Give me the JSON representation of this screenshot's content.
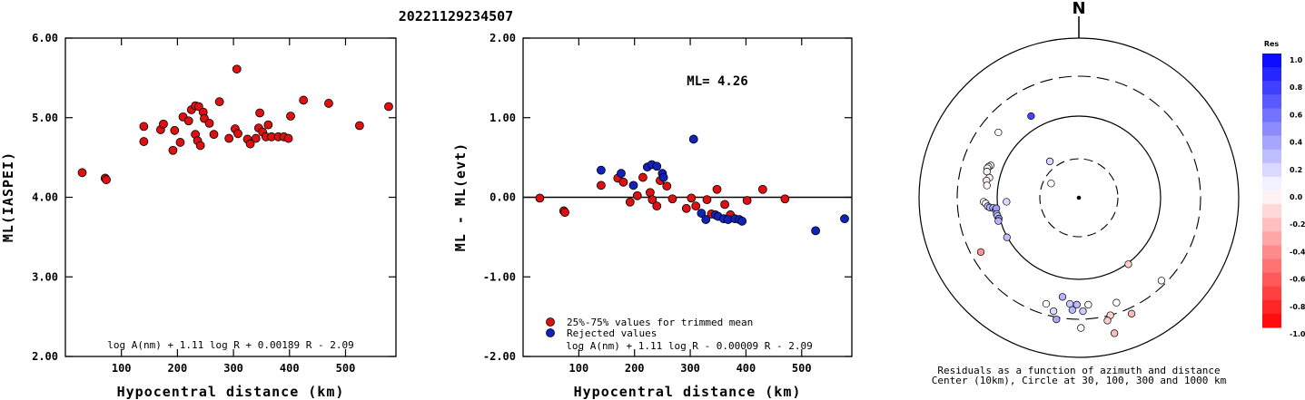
{
  "figure_title": "20221129234507",
  "chart_data": [
    {
      "type": "scatter",
      "panel": "left",
      "xlabel": "Hypocentral distance (km)",
      "ylabel": "ML(IASPEI)",
      "xlim": [
        0,
        590
      ],
      "ylim": [
        2.0,
        6.0
      ],
      "xticks": [
        "100",
        "200",
        "300",
        "400",
        "500"
      ],
      "yticks": [
        "2.00",
        "3.00",
        "4.00",
        "5.00",
        "6.00"
      ],
      "formula": "log A(nm) + 1.11 log R + 0.00189 R - 2.09",
      "color": "#dd1111",
      "points": [
        [
          30,
          4.31
        ],
        [
          71,
          4.24
        ],
        [
          73,
          4.22
        ],
        [
          140,
          4.89
        ],
        [
          140,
          4.7
        ],
        [
          170,
          4.85
        ],
        [
          175,
          4.92
        ],
        [
          192,
          4.59
        ],
        [
          195,
          4.84
        ],
        [
          205,
          4.69
        ],
        [
          210,
          5.01
        ],
        [
          220,
          4.96
        ],
        [
          225,
          5.1
        ],
        [
          232,
          5.15
        ],
        [
          232,
          4.79
        ],
        [
          238,
          5.14
        ],
        [
          236,
          4.71
        ],
        [
          241,
          4.65
        ],
        [
          246,
          5.07
        ],
        [
          248,
          4.99
        ],
        [
          257,
          4.93
        ],
        [
          265,
          4.79
        ],
        [
          275,
          5.2
        ],
        [
          292,
          4.74
        ],
        [
          303,
          4.86
        ],
        [
          306,
          5.61
        ],
        [
          308,
          4.8
        ],
        [
          325,
          4.73
        ],
        [
          330,
          4.67
        ],
        [
          340,
          4.74
        ],
        [
          347,
          5.06
        ],
        [
          345,
          4.87
        ],
        [
          352,
          4.82
        ],
        [
          358,
          4.76
        ],
        [
          362,
          4.91
        ],
        [
          368,
          4.76
        ],
        [
          380,
          4.76
        ],
        [
          390,
          4.76
        ],
        [
          398,
          4.74
        ],
        [
          402,
          5.02
        ],
        [
          425,
          5.22
        ],
        [
          470,
          5.18
        ],
        [
          525,
          4.9
        ],
        [
          577,
          5.14
        ]
      ]
    },
    {
      "type": "scatter",
      "panel": "middle",
      "xlabel": "Hypocentral distance (km)",
      "ylabel": "ML - ML(evt)",
      "xlim": [
        0,
        590
      ],
      "ylim": [
        -2.0,
        2.0
      ],
      "xticks": [
        "100",
        "200",
        "300",
        "400",
        "500"
      ],
      "yticks": [
        "-2.00",
        "-1.00",
        "0.00",
        "1.00",
        "2.00"
      ],
      "ml_label": "ML= 4.26",
      "formula": "log A(nm) + 1.11 log R - 0.00009 R - 2.09",
      "legend": [
        "25%-75% values for trimmed mean",
        "Rejected values"
      ],
      "series": [
        {
          "name": "25%-75% values for trimmed mean",
          "color": "#dd1111",
          "points": [
            [
              30,
              -0.01
            ],
            [
              73,
              -0.17
            ],
            [
              75,
              -0.19
            ],
            [
              140,
              0.15
            ],
            [
              170,
              0.24
            ],
            [
              180,
              0.19
            ],
            [
              192,
              -0.06
            ],
            [
              205,
              0.02
            ],
            [
              215,
              0.25
            ],
            [
              228,
              0.06
            ],
            [
              232,
              -0.03
            ],
            [
              240,
              -0.11
            ],
            [
              246,
              0.21
            ],
            [
              258,
              0.14
            ],
            [
              268,
              -0.02
            ],
            [
              293,
              -0.14
            ],
            [
              302,
              -0.01
            ],
            [
              310,
              -0.11
            ],
            [
              330,
              -0.03
            ],
            [
              338,
              -0.21
            ],
            [
              348,
              0.1
            ],
            [
              362,
              -0.09
            ],
            [
              372,
              -0.22
            ],
            [
              402,
              -0.04
            ],
            [
              430,
              0.1
            ],
            [
              470,
              -0.02
            ]
          ]
        },
        {
          "name": "Rejected values",
          "color": "#1122bb",
          "points": [
            [
              140,
              0.34
            ],
            [
              176,
              0.3
            ],
            [
              198,
              0.15
            ],
            [
              223,
              0.38
            ],
            [
              231,
              0.41
            ],
            [
              240,
              0.39
            ],
            [
              250,
              0.3
            ],
            [
              252,
              0.25
            ],
            [
              306,
              0.73
            ],
            [
              320,
              -0.2
            ],
            [
              328,
              -0.28
            ],
            [
              345,
              -0.22
            ],
            [
              350,
              -0.24
            ],
            [
              360,
              -0.27
            ],
            [
              368,
              -0.28
            ],
            [
              380,
              -0.27
            ],
            [
              388,
              -0.28
            ],
            [
              393,
              -0.3
            ],
            [
              525,
              -0.42
            ],
            [
              577,
              -0.27
            ]
          ]
        }
      ]
    },
    {
      "type": "polar-scatter",
      "panel": "right",
      "north_label": "N",
      "caption_line1": "Residuals as a function of azimuth and distance",
      "caption_line2": "Center (10km), Circle at 30, 100, 300 and 1000 km",
      "colorbar_title": "Res",
      "colorbar_ticks": [
        "1.0",
        "0.8",
        "0.6",
        "0.4",
        "0.2",
        "0.0",
        "-0.2",
        "-0.4",
        "-0.6",
        "-0.8",
        "-1.0"
      ],
      "rings_km": [
        30,
        100,
        300,
        1000
      ],
      "color_scale": {
        "positive": "#0000ff",
        "zero": "#ffffff",
        "negative": "#ff0000"
      },
      "stations": [
        {
          "dx": -1.17,
          "dy": -2.0,
          "res": 0.73
        },
        {
          "dx": -1.97,
          "dy": -1.6,
          "res": 0.0
        },
        {
          "dx": -0.71,
          "dy": -0.89,
          "res": 0.16
        },
        {
          "dx": -0.68,
          "dy": -0.35,
          "res": 0.0
        },
        {
          "dx": -2.16,
          "dy": -0.79,
          "res": 0.0
        },
        {
          "dx": -2.21,
          "dy": -0.76,
          "res": -0.03
        },
        {
          "dx": -2.24,
          "dy": -0.72,
          "res": 0.01
        },
        {
          "dx": -2.25,
          "dy": -0.64,
          "res": -0.06
        },
        {
          "dx": -2.19,
          "dy": -0.49,
          "res": -0.02
        },
        {
          "dx": -2.26,
          "dy": -0.42,
          "res": -0.11
        },
        {
          "dx": -2.25,
          "dy": -0.3,
          "res": 0.0
        },
        {
          "dx": -2.33,
          "dy": 0.1,
          "res": 0.0
        },
        {
          "dx": -2.28,
          "dy": 0.14,
          "res": 0.02
        },
        {
          "dx": -2.23,
          "dy": 0.21,
          "res": 0.24
        },
        {
          "dx": -2.18,
          "dy": 0.24,
          "res": 0.3
        },
        {
          "dx": -2.1,
          "dy": 0.25,
          "res": 0.34
        },
        {
          "dx": -2.04,
          "dy": 0.3,
          "res": 0.39
        },
        {
          "dx": -2.02,
          "dy": 0.26,
          "res": 0.38
        },
        {
          "dx": -2.01,
          "dy": 0.4,
          "res": 0.27
        },
        {
          "dx": -1.99,
          "dy": 0.45,
          "res": 0.22
        },
        {
          "dx": -1.96,
          "dy": 0.51,
          "res": 0.42
        },
        {
          "dx": -1.97,
          "dy": 0.57,
          "res": 0.3
        },
        {
          "dx": -1.77,
          "dy": 0.1,
          "res": 0.15
        },
        {
          "dx": -1.76,
          "dy": 0.97,
          "res": 0.25
        },
        {
          "dx": -2.4,
          "dy": 1.33,
          "res": -0.42
        },
        {
          "dx": 1.21,
          "dy": 1.63,
          "res": -0.19
        },
        {
          "dx": -0.4,
          "dy": 2.43,
          "res": 0.3
        },
        {
          "dx": -0.22,
          "dy": 2.6,
          "res": 0.22
        },
        {
          "dx": -0.16,
          "dy": 2.75,
          "res": 0.28
        },
        {
          "dx": -0.05,
          "dy": 2.62,
          "res": 0.27
        },
        {
          "dx": 0.1,
          "dy": 2.78,
          "res": 0.2
        },
        {
          "dx": 0.23,
          "dy": 2.62,
          "res": 0.0
        },
        {
          "dx": -0.8,
          "dy": 2.6,
          "res": 0.0
        },
        {
          "dx": -0.62,
          "dy": 2.78,
          "res": 0.14
        },
        {
          "dx": -0.55,
          "dy": 2.98,
          "res": 0.34
        },
        {
          "dx": 0.05,
          "dy": 3.19,
          "res": 0.0
        },
        {
          "dx": 0.92,
          "dy": 2.57,
          "res": 0.0
        },
        {
          "dx": 0.77,
          "dy": 2.88,
          "res": -0.18
        },
        {
          "dx": 0.7,
          "dy": 3.01,
          "res": -0.2
        },
        {
          "dx": 0.87,
          "dy": 3.32,
          "res": -0.26
        },
        {
          "dx": 1.29,
          "dy": 2.84,
          "res": -0.28
        },
        {
          "dx": 2.02,
          "dy": 2.03,
          "res": 0.0
        }
      ]
    }
  ]
}
